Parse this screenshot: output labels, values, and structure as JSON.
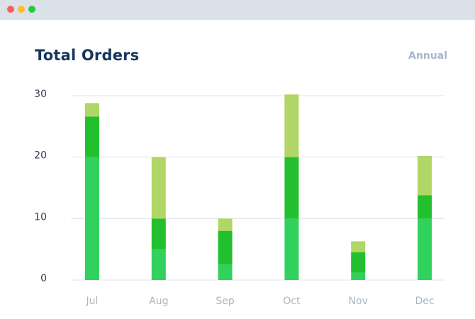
{
  "window": {
    "controls": [
      {
        "name": "close",
        "color": "#ff5f57"
      },
      {
        "name": "minimize",
        "color": "#febc2e"
      },
      {
        "name": "maximize",
        "color": "#28c840"
      }
    ]
  },
  "header": {
    "title": "Total Orders",
    "period_label": "Annual"
  },
  "chart_data": {
    "type": "bar",
    "stacked": true,
    "title": "Total Orders",
    "categories": [
      "Jul",
      "Aug",
      "Sep",
      "Oct",
      "Nov",
      "Dec"
    ],
    "series": [
      {
        "color": "#31d15e",
        "values": [
          20,
          5,
          2.5,
          10,
          1.2,
          10
        ]
      },
      {
        "color": "#22c02e",
        "values": [
          6.6,
          5,
          5.5,
          10,
          3.3,
          3.8
        ]
      },
      {
        "color": "#b0d665",
        "values": [
          2.2,
          10,
          2,
          10.2,
          1.8,
          6.4
        ]
      }
    ],
    "ylim": [
      0,
      30
    ],
    "yticks": [
      0,
      10,
      20,
      30
    ],
    "grid": true,
    "colors": {
      "grid": "#dde2e8",
      "title": "#17365d",
      "axis_text": "#2f3d52",
      "category_text": "#a9b4c4"
    }
  }
}
